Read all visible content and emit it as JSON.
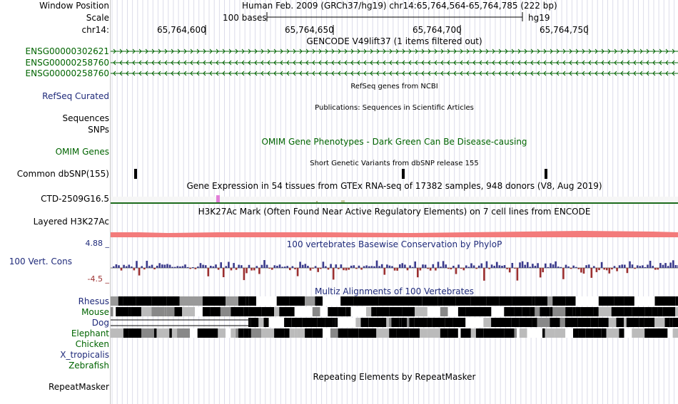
{
  "header": {
    "window_position_label": "Window Position",
    "scale_label": "Scale",
    "chrom_label": "chr14:",
    "position_text": "Human Feb. 2009 (GRCh37/hg19)   chr14:65,764,564-65,764,785 (222 bp)",
    "scale_text": "100 bases",
    "assembly": "hg19",
    "ticks": [
      "65,764,600",
      "65,764,650",
      "65,764,700",
      "65,764,750"
    ]
  },
  "gencode": {
    "title": "GENCODE V49lift37 (1 items filtered out)",
    "genes": [
      "ENSG00000302621",
      "ENSG00000258760",
      "ENSG00000258760"
    ],
    "color": "#006400"
  },
  "refseq": {
    "label": "RefSeq Curated",
    "title": "RefSeq genes from NCBI"
  },
  "publications": {
    "label": "Sequences",
    "title": "Publications: Sequences in Scientific Articles"
  },
  "snps": {
    "label": "SNPs"
  },
  "omim": {
    "label": "OMIM Genes",
    "title": "OMIM Gene Phenotypes - Dark Green Can Be Disease-causing"
  },
  "dbsnp": {
    "label": "Common dbSNP(155)",
    "title": "Short Genetic Variants from dbSNP release 155"
  },
  "gtex": {
    "label": "CTD-2509G16.5",
    "title": "Gene Expression in 54 tissues from GTEx RNA-seq of 17382 samples, 948 donors (V8, Aug 2019)"
  },
  "h3k27ac": {
    "label": "Layered H3K27Ac",
    "title": "H3K27Ac Mark (Often Found Near Active Regulatory Elements) on 7 cell lines from ENCODE",
    "color": "#f37b7b"
  },
  "conservation": {
    "label": "100 Vert. Cons",
    "max": "4.88 _",
    "min": "-4.5 _",
    "title": "100 vertebrates Basewise Conservation by PhyloP",
    "pos_color": "#3a3a8c",
    "neg_color": "#9c3030"
  },
  "multiz": {
    "title": "Multiz Alignments of 100 Vertebrates",
    "species": [
      "Rhesus",
      "Mouse",
      "Dog",
      "Elephant",
      "Chicken",
      "X_tropicalis",
      "Zebrafish"
    ]
  },
  "repeatmasker": {
    "label": "RepeatMasker",
    "title": "Repeating Elements by RepeatMasker"
  },
  "colors": {
    "navy_label": "#1f2a7a",
    "green_label": "#006400",
    "grid": "#d8d8e8"
  }
}
